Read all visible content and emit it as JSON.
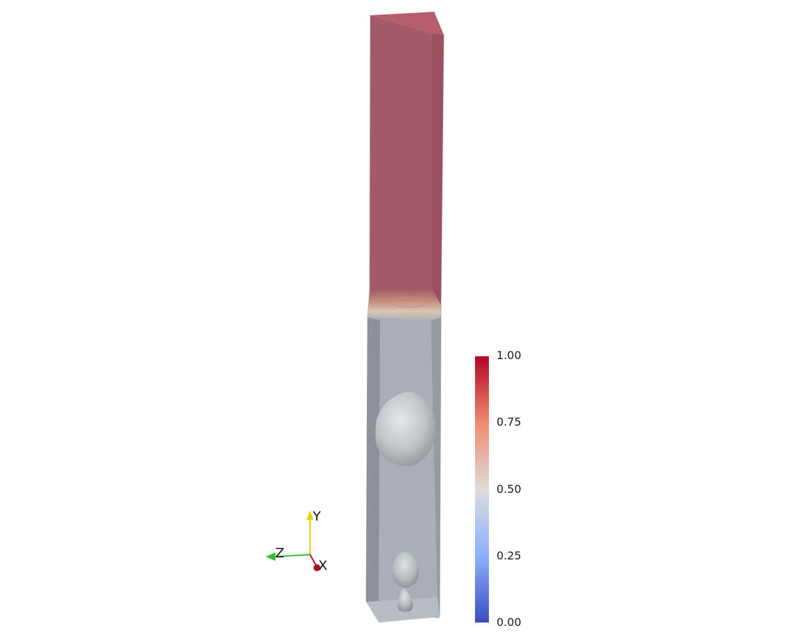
{
  "colorbar": {
    "ticks": [
      "1.00",
      "0.75",
      "0.50",
      "0.25",
      "0.00"
    ],
    "colors": [
      "#b40426",
      "#f08b6f",
      "#dddcdc",
      "#8db0fe",
      "#3b4cc0"
    ]
  },
  "axes_triad": {
    "y_label": "Y",
    "z_label": "Z",
    "x_label": "X",
    "colors": {
      "y": "#e8d000",
      "z": "#2ec42e",
      "x": "#b31010"
    }
  },
  "scene": {
    "upper_phase_color": "#a35a69",
    "lower_phase_color": "#a9afb7",
    "bubble_color": "#c4c6c9"
  }
}
